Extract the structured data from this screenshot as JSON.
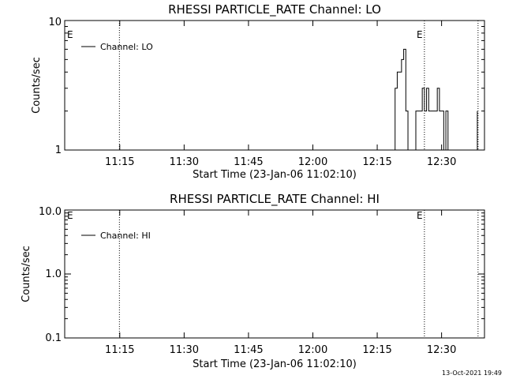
{
  "footer": {
    "timestamp": "13-Oct-2021 19:49"
  },
  "chart_data": [
    {
      "type": "line",
      "title": "RHESSI PARTICLE_RATE Channel: LO",
      "xlabel": "Start Time (23-Jan-06 11:02:10)",
      "ylabel": "Counts/sec",
      "y_scale": "log",
      "ylim": [
        1,
        10
      ],
      "xlim": [
        "11:02:10",
        "12:40:00"
      ],
      "y_tick_labels": [
        "1",
        "10"
      ],
      "x_tick_labels": [
        "11:15",
        "11:30",
        "11:45",
        "12:00",
        "12:15",
        "12:30"
      ],
      "grid": false,
      "legend_position": "top-left",
      "event_lines": [
        "11:14:55",
        "12:26:00",
        "12:38:30"
      ],
      "event_markers": [
        "E",
        "E"
      ],
      "series": [
        {
          "name": "Channel: LO",
          "color": "#000000",
          "segments": [
            [
              [
                "12:18:40",
                1
              ],
              [
                "12:19:10",
                3
              ],
              [
                "12:19:40",
                4
              ],
              [
                "12:20:10",
                4
              ],
              [
                "12:20:40",
                5
              ],
              [
                "12:21:10",
                6
              ],
              [
                "12:21:40",
                2
              ],
              [
                "12:22:10",
                1
              ]
            ],
            [
              [
                "12:23:30",
                1
              ],
              [
                "12:24:00",
                2
              ],
              [
                "12:24:30",
                2
              ],
              [
                "12:25:00",
                2
              ],
              [
                "12:25:30",
                3
              ],
              [
                "12:26:00",
                2
              ],
              [
                "12:26:30",
                3
              ],
              [
                "12:27:00",
                2
              ],
              [
                "12:27:30",
                2
              ],
              [
                "12:28:00",
                2
              ],
              [
                "12:28:30",
                2
              ],
              [
                "12:29:00",
                3
              ],
              [
                "12:29:30",
                2
              ],
              [
                "12:30:00",
                2
              ],
              [
                "12:30:30",
                1
              ],
              [
                "12:31:00",
                2
              ],
              [
                "12:31:30",
                1
              ]
            ],
            [
              [
                "12:37:50",
                1
              ],
              [
                "12:38:20",
                2
              ]
            ]
          ]
        }
      ]
    },
    {
      "type": "line",
      "title": "RHESSI PARTICLE_RATE Channel: HI",
      "xlabel": "Start Time (23-Jan-06 11:02:10)",
      "ylabel": "Counts/sec",
      "y_scale": "log",
      "ylim": [
        0.1,
        10
      ],
      "xlim": [
        "11:02:10",
        "12:40:00"
      ],
      "y_tick_labels": [
        "0.1",
        "1.0",
        "10.0"
      ],
      "x_tick_labels": [
        "11:15",
        "11:30",
        "11:45",
        "12:00",
        "12:15",
        "12:30"
      ],
      "grid": false,
      "legend_position": "top-left",
      "event_lines": [
        "11:14:55",
        "12:26:00",
        "12:38:30"
      ],
      "event_markers": [
        "E",
        "E"
      ],
      "series": [
        {
          "name": "Channel: HI",
          "color": "#000000",
          "segments": []
        }
      ]
    }
  ]
}
